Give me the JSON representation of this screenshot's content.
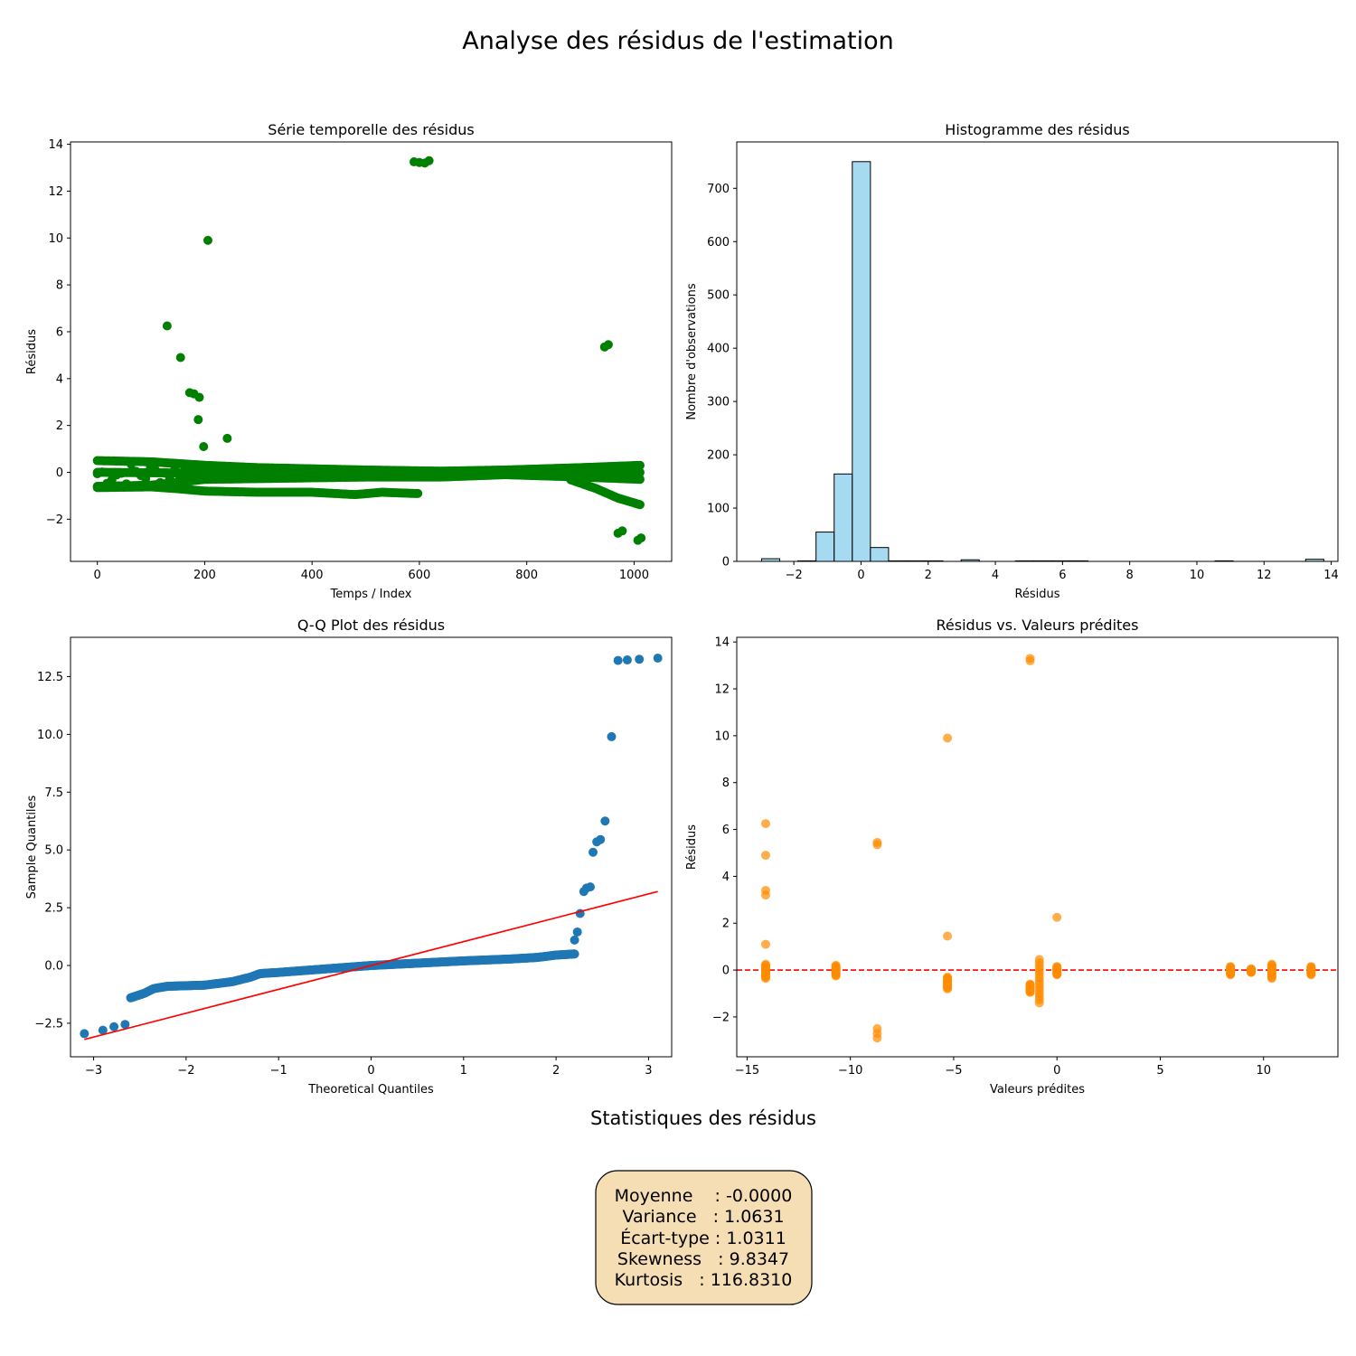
{
  "figure": {
    "title": "Analyse des résidus de l'estimation",
    "stats_title": "Statistiques des résidus",
    "stats_lines": [
      "Moyenne    : -0.0000",
      "Variance   : 1.0631",
      "Écart-type : 1.0311",
      "Skewness   : 9.8347",
      "Kurtosis   : 116.8310"
    ],
    "stats_box_color": "#f5deb3"
  },
  "chart_data": [
    {
      "type": "scatter",
      "title": "Série temporelle des résidus",
      "xlabel": "Temps / Index",
      "ylabel": "Résidus",
      "xlim": [
        -50,
        1070
      ],
      "ylim": [
        -3.8,
        14.1
      ],
      "xticks": [
        0,
        200,
        400,
        600,
        800,
        1000
      ],
      "yticks": [
        -2,
        0,
        2,
        4,
        6,
        8,
        10,
        12,
        14
      ],
      "color": "#008000",
      "band": {
        "n": 1014,
        "upper": [
          [
            0,
            0.5
          ],
          [
            100,
            0.45
          ],
          [
            200,
            0.3
          ],
          [
            300,
            0.2
          ],
          [
            500,
            0.1
          ],
          [
            640,
            0.05
          ],
          [
            760,
            0.1
          ],
          [
            900,
            0.2
          ],
          [
            1014,
            0.3
          ]
        ],
        "middle": [
          [
            0,
            0.0
          ],
          [
            300,
            -0.05
          ],
          [
            640,
            -0.1
          ],
          [
            900,
            -0.05
          ],
          [
            1014,
            0.0
          ]
        ],
        "lower": [
          [
            0,
            -0.6
          ],
          [
            100,
            -0.55
          ],
          [
            200,
            -0.3
          ],
          [
            350,
            -0.25
          ],
          [
            500,
            -0.2
          ],
          [
            640,
            -0.2
          ],
          [
            760,
            -0.1
          ],
          [
            900,
            -0.2
          ],
          [
            1014,
            -0.3
          ]
        ],
        "tail": [
          [
            0,
            -0.65
          ],
          [
            100,
            -0.62
          ],
          [
            150,
            -0.7
          ],
          [
            200,
            -0.8
          ],
          [
            300,
            -0.85
          ],
          [
            400,
            -0.85
          ],
          [
            480,
            -0.95
          ],
          [
            530,
            -0.85
          ],
          [
            590,
            -0.9
          ]
        ],
        "tail2": [
          [
            880,
            -0.3
          ],
          [
            930,
            -0.7
          ],
          [
            970,
            -1.1
          ],
          [
            1014,
            -1.4
          ]
        ]
      },
      "outliers": [
        {
          "x": 590,
          "y": 13.25
        },
        {
          "x": 600,
          "y": 13.22
        },
        {
          "x": 610,
          "y": 13.2
        },
        {
          "x": 618,
          "y": 13.3
        },
        {
          "x": 206,
          "y": 9.9
        },
        {
          "x": 130,
          "y": 6.25
        },
        {
          "x": 155,
          "y": 4.9
        },
        {
          "x": 172,
          "y": 3.4
        },
        {
          "x": 180,
          "y": 3.35
        },
        {
          "x": 190,
          "y": 3.2
        },
        {
          "x": 188,
          "y": 2.25
        },
        {
          "x": 198,
          "y": 1.1
        },
        {
          "x": 242,
          "y": 1.45
        },
        {
          "x": 945,
          "y": 5.35
        },
        {
          "x": 952,
          "y": 5.45
        },
        {
          "x": 970,
          "y": -2.6
        },
        {
          "x": 978,
          "y": -2.5
        },
        {
          "x": 1007,
          "y": -2.9
        },
        {
          "x": 1013,
          "y": -2.8
        }
      ]
    },
    {
      "type": "bar",
      "title": "Histogramme des résidus",
      "xlabel": "Résidus",
      "ylabel": "Nombre d'observations",
      "xlim": [
        -3.7,
        14.2
      ],
      "ylim": [
        0,
        787
      ],
      "xticks": [
        -2,
        0,
        2,
        4,
        6,
        8,
        10,
        12,
        14
      ],
      "yticks": [
        0,
        100,
        200,
        300,
        400,
        500,
        600,
        700
      ],
      "color": "#87ceeb",
      "bin_start": -2.96,
      "bin_width": 0.54,
      "values": [
        5,
        0,
        1,
        55,
        164,
        750,
        26,
        1,
        1,
        1,
        0,
        3,
        0,
        0,
        1,
        1,
        1,
        1,
        0,
        0,
        0,
        0,
        0,
        0,
        0,
        1,
        0,
        0,
        0,
        0,
        4
      ]
    },
    {
      "type": "scatter",
      "title": "Q-Q Plot des résidus",
      "xlabel": "Theoretical Quantiles",
      "ylabel": "Sample Quantiles",
      "xlim": [
        -3.25,
        3.25
      ],
      "ylim": [
        -3.95,
        14.2
      ],
      "xticks": [
        -3,
        -2,
        -1,
        0,
        1,
        2,
        3
      ],
      "yticks": [
        -2.5,
        0.0,
        2.5,
        5.0,
        7.5,
        10.0,
        12.5
      ],
      "ytick_labels": [
        "−2.5",
        "0.0",
        "2.5",
        "5.0",
        "7.5",
        "10.0",
        "12.5"
      ],
      "color": "#1f77b4",
      "line_color": "#ff0000",
      "ref_line": [
        [
          -3.1,
          -3.2
        ],
        [
          3.1,
          3.2
        ]
      ],
      "curve": [
        [
          -2.6,
          -1.4
        ],
        [
          -2.45,
          -1.2
        ],
        [
          -2.35,
          -1.0
        ],
        [
          -2.2,
          -0.9
        ],
        [
          -1.8,
          -0.85
        ],
        [
          -1.5,
          -0.7
        ],
        [
          -1.3,
          -0.5
        ],
        [
          -1.2,
          -0.35
        ],
        [
          -1.0,
          -0.3
        ],
        [
          -0.5,
          -0.15
        ],
        [
          0.0,
          0.0
        ],
        [
          0.5,
          0.1
        ],
        [
          1.0,
          0.2
        ],
        [
          1.5,
          0.28
        ],
        [
          1.8,
          0.35
        ],
        [
          2.0,
          0.45
        ],
        [
          2.2,
          0.5
        ]
      ],
      "points": [
        {
          "x": -3.1,
          "y": -2.95
        },
        {
          "x": -2.9,
          "y": -2.8
        },
        {
          "x": -2.78,
          "y": -2.65
        },
        {
          "x": -2.66,
          "y": -2.55
        },
        {
          "x": 2.2,
          "y": 1.1
        },
        {
          "x": 2.23,
          "y": 1.45
        },
        {
          "x": 2.26,
          "y": 2.25
        },
        {
          "x": 2.3,
          "y": 3.2
        },
        {
          "x": 2.33,
          "y": 3.35
        },
        {
          "x": 2.37,
          "y": 3.4
        },
        {
          "x": 2.4,
          "y": 4.9
        },
        {
          "x": 2.44,
          "y": 5.35
        },
        {
          "x": 2.48,
          "y": 5.45
        },
        {
          "x": 2.53,
          "y": 6.25
        },
        {
          "x": 2.6,
          "y": 9.9
        },
        {
          "x": 2.67,
          "y": 13.2
        },
        {
          "x": 2.77,
          "y": 13.22
        },
        {
          "x": 2.9,
          "y": 13.25
        },
        {
          "x": 3.1,
          "y": 13.3
        }
      ]
    },
    {
      "type": "scatter",
      "title": "Résidus vs. Valeurs prédites",
      "xlabel": "Valeurs prédites",
      "ylabel": "Résidus",
      "xlim": [
        -15.5,
        13.6
      ],
      "ylim": [
        -3.7,
        14.2
      ],
      "xticks": [
        -15,
        -10,
        -5,
        0,
        5,
        10
      ],
      "yticks": [
        -2,
        0,
        2,
        4,
        6,
        8,
        10,
        12,
        14
      ],
      "color": "#ff8c00",
      "zero_line_color": "#ff0000",
      "columns": [
        {
          "x": -14.1,
          "min": -0.35,
          "max": 0.25
        },
        {
          "x": -10.7,
          "min": -0.25,
          "max": 0.2
        },
        {
          "x": -5.3,
          "min": -0.8,
          "max": -0.3
        },
        {
          "x": -1.3,
          "min": -0.95,
          "max": -0.6
        },
        {
          "x": -0.85,
          "min": -1.4,
          "max": 0.45
        },
        {
          "x": 0.0,
          "min": -0.2,
          "max": 0.15
        },
        {
          "x": 8.4,
          "min": -0.2,
          "max": 0.15
        },
        {
          "x": 9.4,
          "min": -0.1,
          "max": 0.05
        },
        {
          "x": 10.4,
          "min": -0.35,
          "max": 0.25
        },
        {
          "x": 12.3,
          "min": -0.2,
          "max": 0.15
        }
      ],
      "points": [
        {
          "x": -14.1,
          "y": 6.25
        },
        {
          "x": -14.1,
          "y": 4.9
        },
        {
          "x": -14.1,
          "y": 3.4
        },
        {
          "x": -14.1,
          "y": 3.2
        },
        {
          "x": -14.1,
          "y": 1.1
        },
        {
          "x": -8.7,
          "y": 5.45
        },
        {
          "x": -8.7,
          "y": 5.35
        },
        {
          "x": -8.7,
          "y": -2.5
        },
        {
          "x": -8.7,
          "y": -2.7
        },
        {
          "x": -8.7,
          "y": -2.9
        },
        {
          "x": -5.3,
          "y": 9.9
        },
        {
          "x": -5.3,
          "y": 1.45
        },
        {
          "x": -1.3,
          "y": 13.3
        },
        {
          "x": -1.3,
          "y": 13.2
        },
        {
          "x": 0.0,
          "y": 2.25
        }
      ]
    }
  ]
}
